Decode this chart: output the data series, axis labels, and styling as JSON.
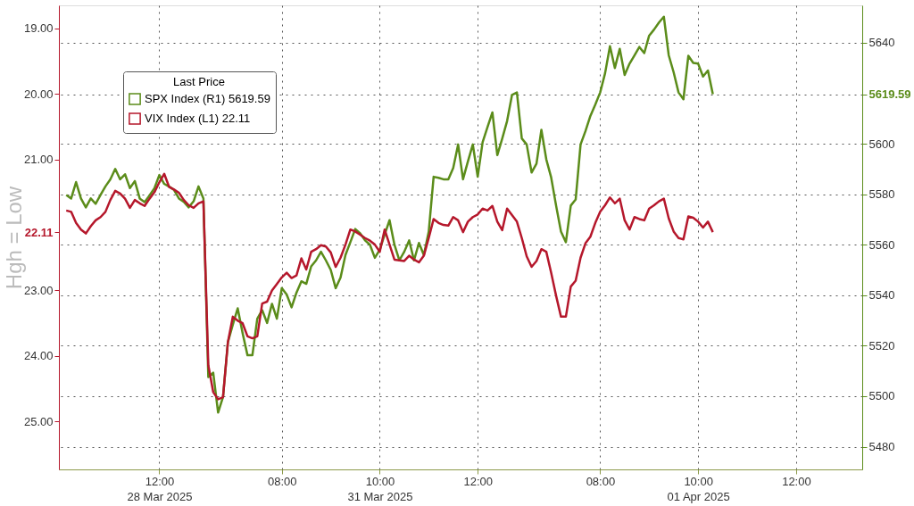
{
  "chart_data": {
    "type": "line",
    "ylabel": "Hgh = Low",
    "legend_title": "Last Price",
    "legend": "top left",
    "grid": true,
    "line_style": "solid",
    "marker": "none",
    "categories": [
      null,
      null,
      null,
      null,
      null,
      null,
      null,
      null,
      null,
      null,
      null,
      null,
      null,
      null,
      null,
      null,
      null,
      null,
      null,
      null,
      "12:00\n28 Mar 2025",
      null,
      null,
      null,
      null,
      null,
      null,
      null,
      null,
      null,
      null,
      null,
      null,
      null,
      null,
      null,
      null,
      null,
      null,
      null,
      null,
      null,
      null,
      null,
      null,
      "08:00",
      null,
      null,
      null,
      null,
      null,
      null,
      null,
      null,
      null,
      null,
      null,
      null,
      null,
      null,
      null,
      null,
      null,
      null,
      null,
      "10:00\n31 Mar 2025",
      null,
      null,
      null,
      null,
      null,
      null,
      null,
      null,
      null,
      null,
      null,
      null,
      null,
      null,
      null,
      null,
      null,
      null,
      null,
      "12:00",
      null,
      null,
      null,
      null,
      null,
      null,
      null,
      null,
      null,
      null,
      null,
      null,
      null,
      null,
      null,
      null,
      null,
      null,
      null,
      null,
      null,
      null,
      null,
      null,
      "08:00",
      null,
      null,
      null,
      null,
      null,
      null,
      null,
      null,
      null,
      null,
      null,
      null,
      null,
      null,
      null,
      null,
      null,
      null,
      null,
      "10:00\n01 Apr 2025",
      null,
      null,
      null,
      null,
      null,
      null,
      null,
      null,
      null,
      null,
      null,
      null,
      null,
      null,
      null,
      null,
      null,
      null,
      null,
      "12:00",
      null,
      null,
      null,
      null,
      null,
      null,
      null,
      null,
      null,
      null,
      null,
      null,
      null
    ],
    "ylim": [
      25.73,
      18.65
    ],
    "yticks": [
      {
        "value": 19,
        "label": "19.00"
      },
      {
        "value": 20,
        "label": "20.00"
      },
      {
        "value": 21,
        "label": "21.00"
      },
      {
        "value": 22.11,
        "label": "22.11"
      },
      {
        "value": 23,
        "label": "23.00"
      },
      {
        "value": 24,
        "label": "24.00"
      },
      {
        "value": 25,
        "label": "25.00"
      }
    ],
    "y2lim": [
      5471,
      5654.8
    ],
    "y2ticks": [
      5480,
      5500,
      5520,
      5540,
      5560,
      5580,
      5600,
      5619.59,
      5640
    ],
    "series": [
      {
        "name": "SPX Index (R1) 5619.59",
        "color": "#5b8c1a",
        "axis": "y2",
        "values": [
          null,
          5579.7,
          5578.3,
          5584.8,
          5578.3,
          5574.8,
          5578.3,
          5576.2,
          5579.7,
          5583.1,
          5585.9,
          5590.0,
          5585.9,
          5587.9,
          5582.4,
          5585.2,
          5578.3,
          5576.9,
          5579.5,
          5582.4,
          5587.6,
          5584.1,
          5583.0,
          5581.7,
          5578.3,
          5577.0,
          5574.8,
          5577.2,
          5583.1,
          5578.3,
          5507.6,
          5509.3,
          5493.5,
          5499.7,
          5521.4,
          5528.3,
          5534.8,
          5525.0,
          5516.2,
          5516.2,
          5530.7,
          5534.1,
          5529.0,
          5536.6,
          5530.7,
          5542.8,
          5540.3,
          5535.2,
          5541.0,
          5545.5,
          5544.5,
          5551.4,
          5553.8,
          5557.2,
          5553.8,
          5550.0,
          5542.8,
          5547.0,
          5555.9,
          5561.0,
          5566.2,
          5564.5,
          5561.7,
          5560.0,
          5554.8,
          5558.0,
          5564.0,
          5569.7,
          5560.0,
          5553.8,
          5557.2,
          5561.7,
          5553.8,
          5560.7,
          5555.9,
          5565.2,
          5586.9,
          5586.5,
          5585.9,
          5585.9,
          5590.4,
          5599.7,
          5585.9,
          5593.0,
          5599.7,
          5586.9,
          5600.6,
          5606.6,
          5612.4,
          5595.5,
          5602.0,
          5609.0,
          5619.3,
          5620.3,
          5602.1,
          5599.7,
          5588.6,
          5592.1,
          5605.5,
          5593.8,
          5586.6,
          5575.5,
          5565.2,
          5561.0,
          5575.5,
          5577.9,
          5599.7,
          5605.0,
          5611.0,
          5615.5,
          5620.3,
          5627.9,
          5638.6,
          5630.0,
          5637.6,
          5627.2,
          5631.7,
          5635.0,
          5638.3,
          5635.9,
          5642.8,
          5645.2,
          5648.0,
          5650.3,
          5635.0,
          5628.3,
          5620.3,
          5617.6,
          5634.8,
          5632.0,
          5631.7,
          5626.6,
          5629.0,
          5619.59,
          null,
          null,
          null,
          null,
          null,
          null,
          null,
          null,
          null,
          null,
          null,
          null,
          null,
          null,
          null,
          null,
          null,
          null,
          null,
          null,
          null,
          null,
          null,
          null,
          null,
          null,
          null,
          null,
          null,
          null
        ]
      },
      {
        "name": "VIX Index (L1) 22.11",
        "color": "#b5172b",
        "axis": "y",
        "values": [
          null,
          21.78,
          21.8,
          21.97,
          22.07,
          22.13,
          22.02,
          21.93,
          21.88,
          21.8,
          21.62,
          21.48,
          21.52,
          21.6,
          21.74,
          21.62,
          21.67,
          21.71,
          21.6,
          21.5,
          21.35,
          21.22,
          21.42,
          21.46,
          21.51,
          21.62,
          21.7,
          21.74,
          21.67,
          21.64,
          24.14,
          24.55,
          24.66,
          24.63,
          23.79,
          23.4,
          23.46,
          23.5,
          23.7,
          23.73,
          23.7,
          23.2,
          23.17,
          23.0,
          22.9,
          22.8,
          22.73,
          22.81,
          22.77,
          22.51,
          22.68,
          22.41,
          22.37,
          22.31,
          22.33,
          22.42,
          22.64,
          22.5,
          22.3,
          22.07,
          22.1,
          22.15,
          22.2,
          22.24,
          22.3,
          22.41,
          22.07,
          22.3,
          22.53,
          22.54,
          22.55,
          22.47,
          22.53,
          22.57,
          22.47,
          22.2,
          21.91,
          21.97,
          22.0,
          22.01,
          21.88,
          21.93,
          22.11,
          21.95,
          21.88,
          21.84,
          21.75,
          21.78,
          21.71,
          21.95,
          22.08,
          21.75,
          21.85,
          21.95,
          22.2,
          22.48,
          22.64,
          22.55,
          22.37,
          22.41,
          22.73,
          23.08,
          23.4,
          23.4,
          22.94,
          22.85,
          22.5,
          22.28,
          22.18,
          21.97,
          21.8,
          21.7,
          21.58,
          21.67,
          21.6,
          21.93,
          22.07,
          21.88,
          21.91,
          21.93,
          21.75,
          21.7,
          21.64,
          21.6,
          21.9,
          22.1,
          22.2,
          22.22,
          21.87,
          21.89,
          21.95,
          22.04,
          21.95,
          22.11,
          null,
          null,
          null,
          null,
          null,
          null,
          null,
          null,
          null,
          null,
          null,
          null,
          null,
          null,
          null,
          null,
          null,
          null,
          null,
          null,
          null,
          null,
          null,
          null,
          null,
          null,
          null,
          null,
          null,
          null
        ]
      }
    ]
  }
}
